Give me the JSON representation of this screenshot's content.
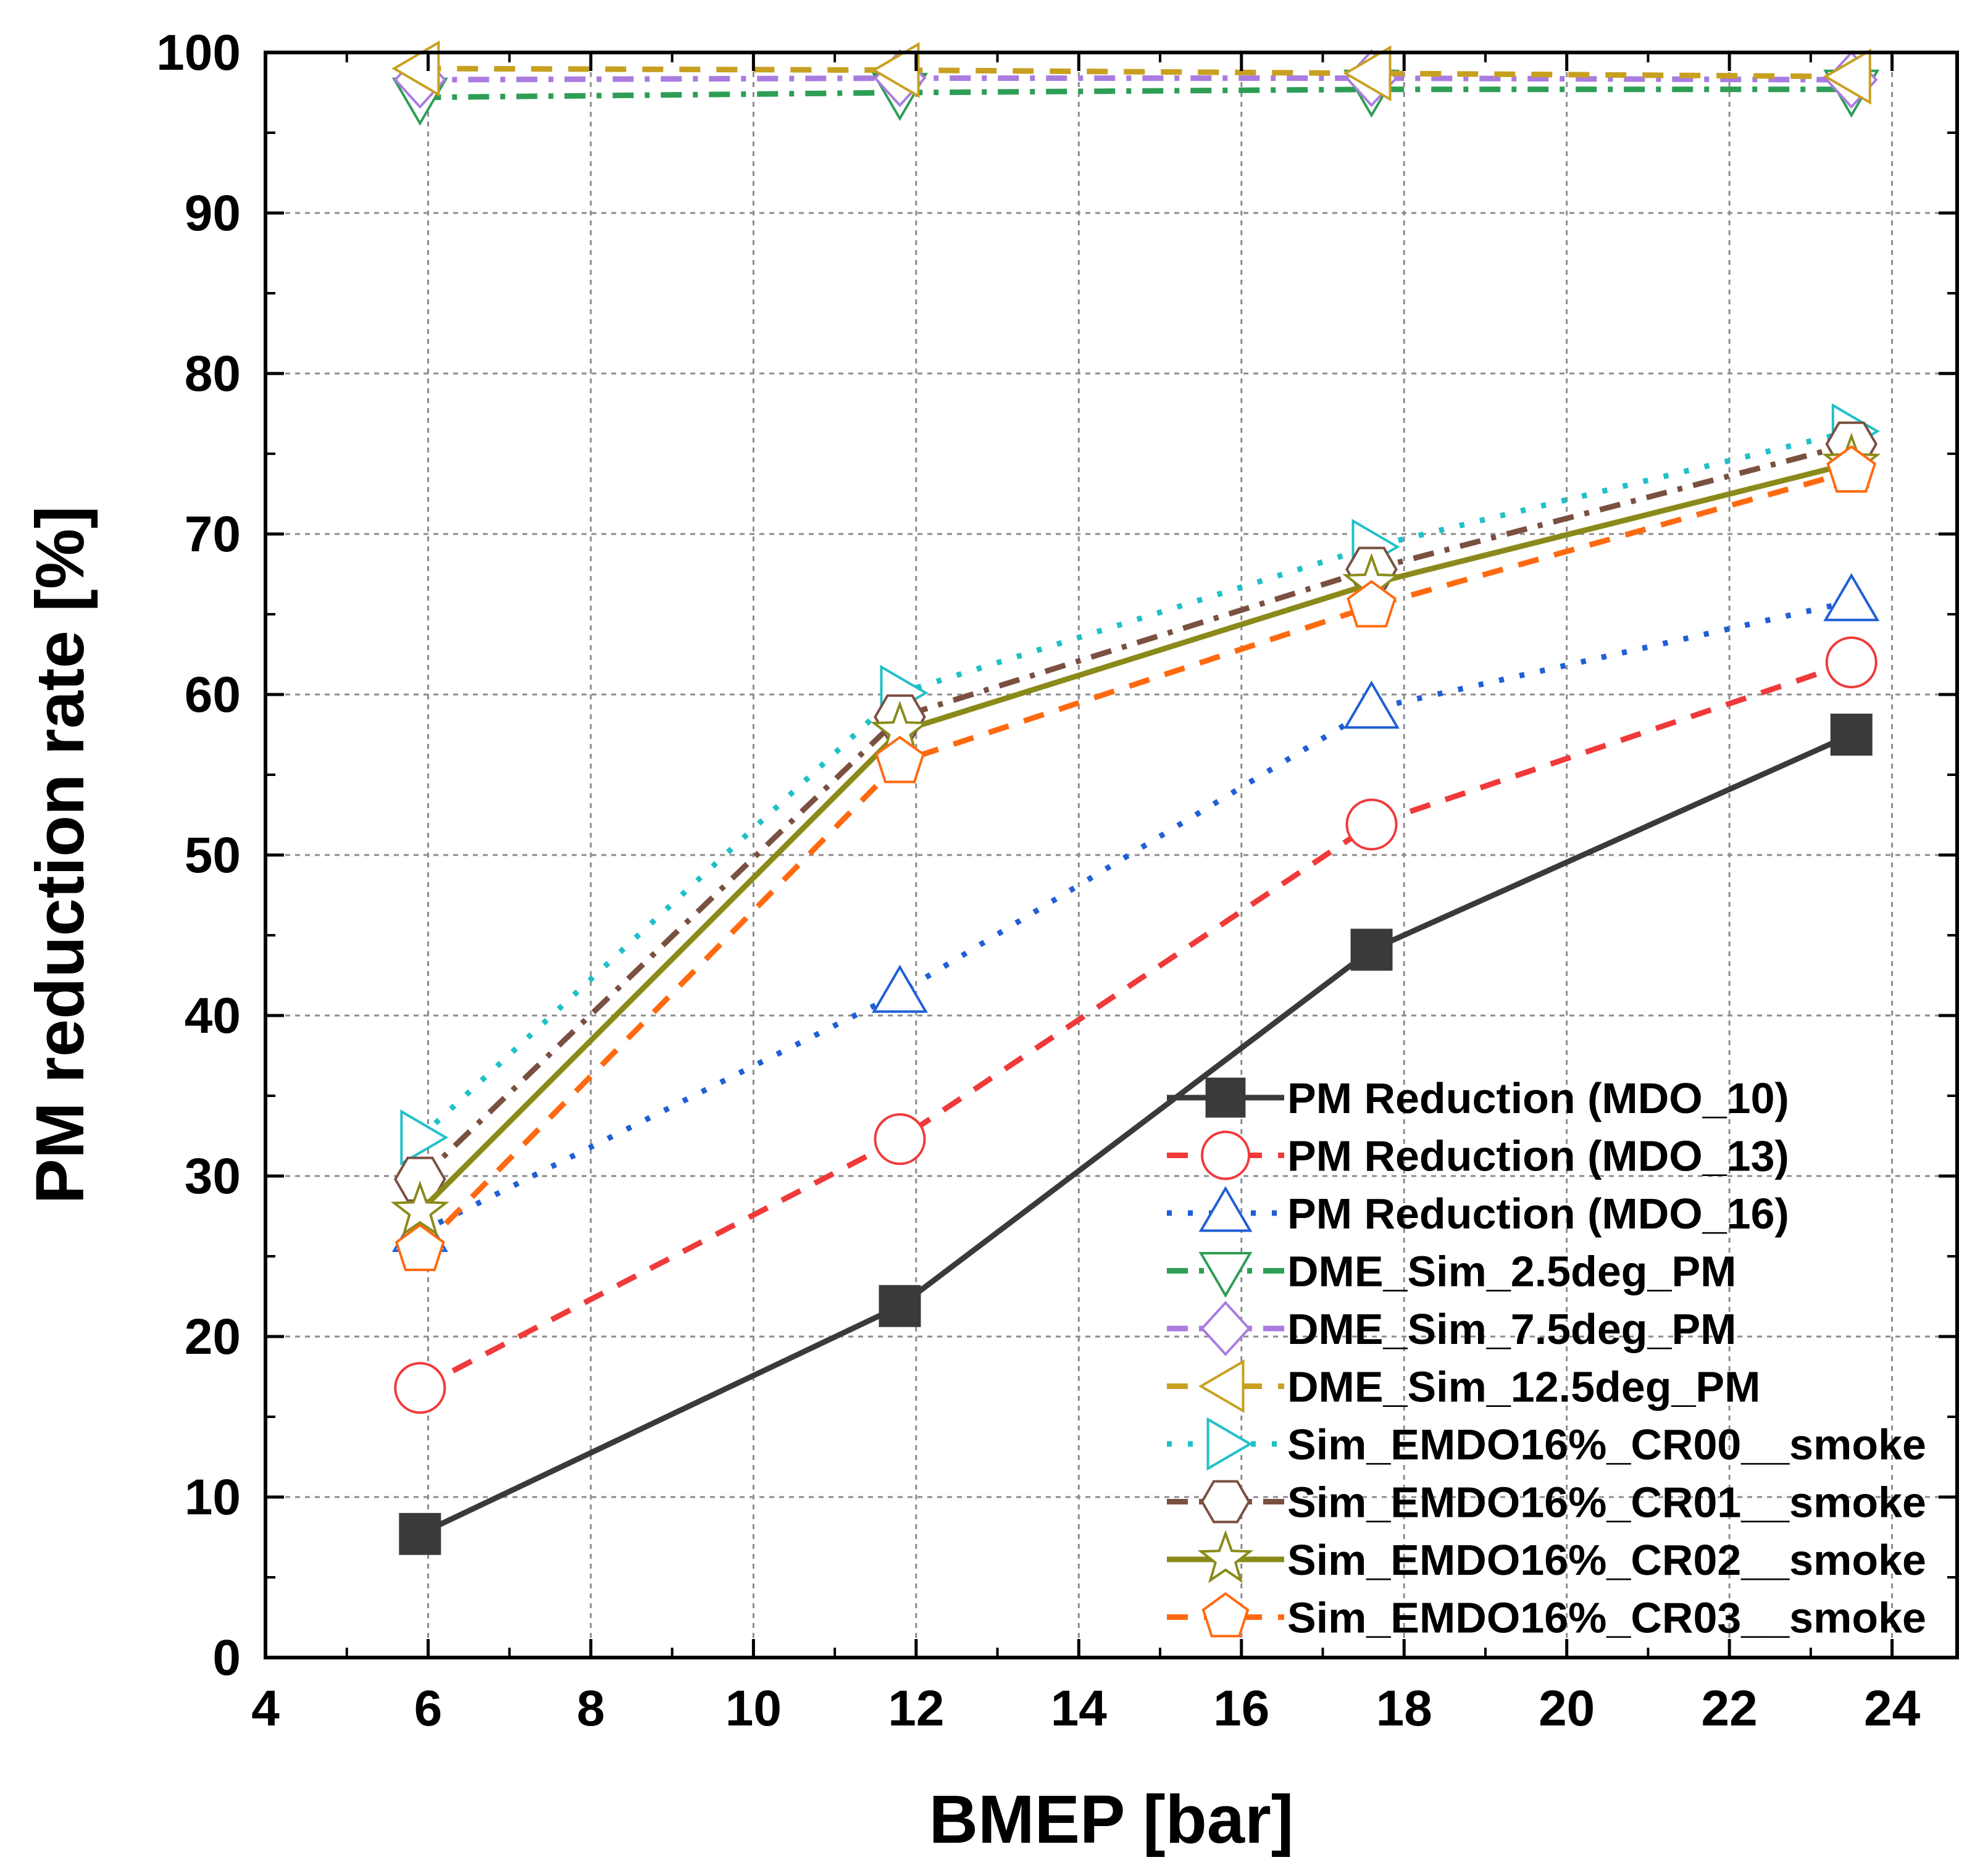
{
  "chart_data": {
    "type": "line",
    "title": "",
    "xlabel": "BMEP [bar]",
    "ylabel": "PM reduction rate [%]",
    "xlim": [
      4,
      24.8
    ],
    "ylim": [
      0,
      100
    ],
    "xticks": [
      4,
      6,
      8,
      10,
      12,
      14,
      16,
      18,
      20,
      22,
      24
    ],
    "yticks": [
      0,
      10,
      20,
      30,
      40,
      50,
      60,
      70,
      80,
      90,
      100
    ],
    "grid": true,
    "legend_position": "bottom-right",
    "series": [
      {
        "name": "PM Reduction  (MDO_10)",
        "color": "#3a3a3a",
        "dash": "solid",
        "marker": "square-filled",
        "x": [
          5.9,
          11.8,
          17.6,
          23.5
        ],
        "values": [
          7.7,
          21.9,
          44.1,
          57.5
        ]
      },
      {
        "name": "PM Reduction  (MDO_13)",
        "color": "#f03a3a",
        "dash": "dash",
        "marker": "circle",
        "x": [
          5.9,
          11.8,
          17.6,
          23.5
        ],
        "values": [
          16.8,
          32.3,
          51.9,
          62.0
        ]
      },
      {
        "name": "PM Reduction  (MDO_16)",
        "color": "#1f5fd6",
        "dash": "dot",
        "marker": "triangle-up",
        "x": [
          5.9,
          11.8,
          17.6,
          23.5
        ],
        "values": [
          26.5,
          41.4,
          59.1,
          65.8
        ]
      },
      {
        "name": "DME_Sim_2.5deg_PM",
        "color": "#2e9e55",
        "dash": "dashdot",
        "marker": "triangle-down",
        "x": [
          5.9,
          11.8,
          17.6,
          23.5
        ],
        "values": [
          97.2,
          97.5,
          97.7,
          97.7
        ]
      },
      {
        "name": "DME_Sim_7.5deg_PM",
        "color": "#a97ce0",
        "dash": "dashdot",
        "marker": "diamond",
        "x": [
          5.9,
          11.8,
          17.6,
          23.5
        ],
        "values": [
          98.3,
          98.4,
          98.4,
          98.3
        ]
      },
      {
        "name": "DME_Sim_12.5deg_PM",
        "color": "#c8a020",
        "dash": "dash",
        "marker": "triangle-left",
        "x": [
          5.9,
          11.8,
          17.6,
          23.5
        ],
        "values": [
          99.0,
          98.9,
          98.7,
          98.5
        ]
      },
      {
        "name": "Sim_EMDO16%_CR00__smoke",
        "color": "#1fc0c8",
        "dash": "dot",
        "marker": "triangle-right",
        "x": [
          5.9,
          11.8,
          17.6,
          23.5
        ],
        "values": [
          32.4,
          60.1,
          69.2,
          76.4
        ]
      },
      {
        "name": "Sim_EMDO16%_CR01__smoke",
        "color": "#7a5040",
        "dash": "dashdot",
        "marker": "hexagon",
        "x": [
          5.9,
          11.8,
          17.6,
          23.5
        ],
        "values": [
          29.8,
          58.6,
          67.8,
          75.6
        ]
      },
      {
        "name": "Sim_EMDO16%_CR02__smoke",
        "color": "#8a8a1a",
        "dash": "solid",
        "marker": "star",
        "x": [
          5.9,
          11.8,
          17.6,
          23.5
        ],
        "values": [
          27.8,
          57.7,
          66.9,
          74.4
        ]
      },
      {
        "name": "Sim_EMDO16%_CR03__smoke",
        "color": "#ff6a10",
        "dash": "dash",
        "marker": "pentagon",
        "x": [
          5.9,
          11.8,
          17.6,
          23.5
        ],
        "values": [
          25.4,
          55.8,
          65.5,
          73.9
        ]
      }
    ]
  }
}
